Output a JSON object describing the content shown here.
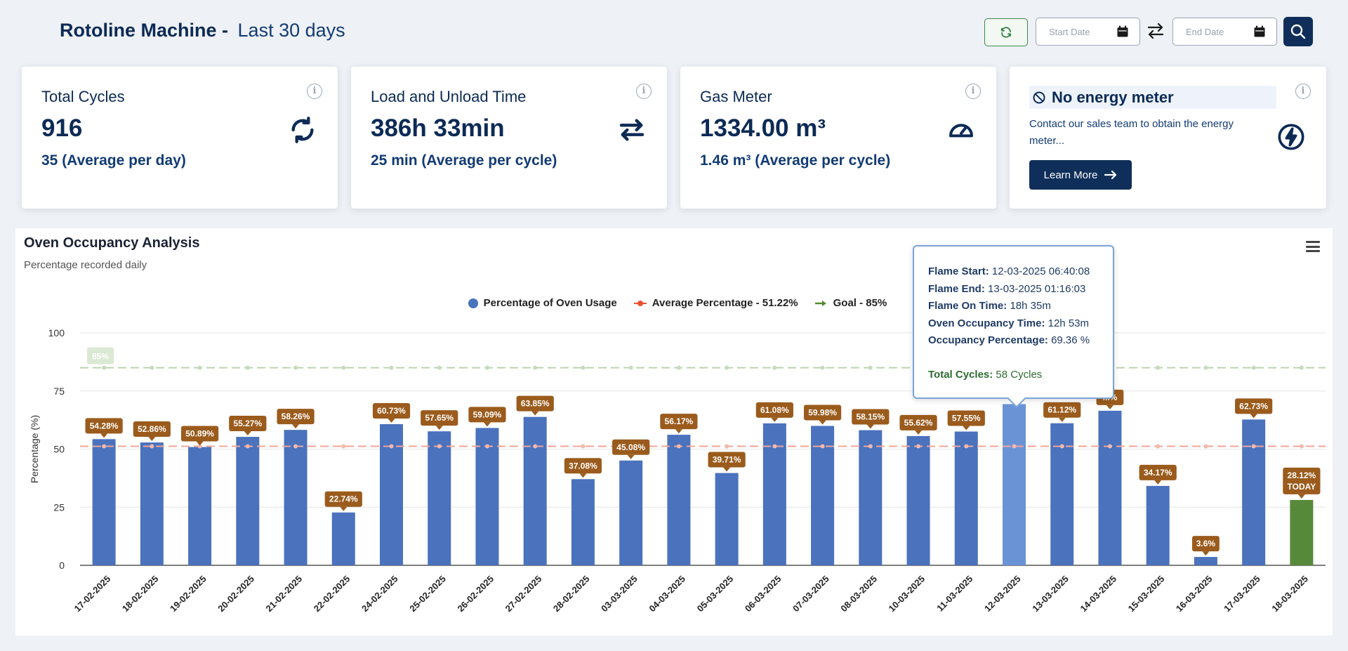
{
  "header": {
    "title_main": "Rotoline Machine -",
    "title_period": "Last 30 days",
    "start_date_placeholder": "Start Date",
    "end_date_placeholder": "End Date"
  },
  "cards": [
    {
      "title": "Total Cycles",
      "value": "916",
      "sub": "35 (Average per day)",
      "icon": "sync-icon"
    },
    {
      "title": "Load and Unload Time",
      "value": "386h 33min",
      "sub": "25 min (Average per cycle)",
      "icon": "swap-arrows-icon"
    },
    {
      "title": "Gas Meter",
      "value": "1334.00 m³",
      "sub": "1.46 m³ (Average per cycle)",
      "icon": "gauge-icon"
    }
  ],
  "energy_card": {
    "title": "No energy meter",
    "text": "Contact our sales team to obtain the energy meter...",
    "button": "Learn More",
    "icon": "lightning-icon"
  },
  "chart_panel": {
    "title": "Oven Occupancy Analysis",
    "subtitle": "Percentage recorded daily"
  },
  "legend": {
    "usage": "Percentage of Oven Usage",
    "average": "Average Percentage - 51.22%",
    "goal": "Goal - 85%"
  },
  "tooltip": {
    "flame_start_label": "Flame Start:",
    "flame_start": "12-03-2025 06:40:08",
    "flame_end_label": "Flame End:",
    "flame_end": "13-03-2025 01:16:03",
    "flame_on_label": "Flame On Time:",
    "flame_on": "18h 35m",
    "occupancy_time_label": "Oven Occupancy Time:",
    "occupancy_time": "12h 53m",
    "occupancy_pct_label": "Occupancy Percentage:",
    "occupancy_pct": "69.36 %",
    "total_cycles_label": "Total Cycles:",
    "total_cycles": "58 Cycles"
  },
  "colors": {
    "bar": "#4a72bd",
    "bar_hover": "#6a93d6",
    "bar_today": "#57893a",
    "label_bg": "#9a5b1c",
    "average_line": "#f0a59a",
    "goal_line": "#bcd2b0",
    "navy": "#0f2f5a"
  },
  "chart_data": {
    "type": "bar",
    "ylabel": "Percentage (%)",
    "ylim": [
      0,
      100
    ],
    "yticks": [
      0,
      25,
      50,
      75,
      100
    ],
    "categories": [
      "17-02-2025",
      "18-02-2025",
      "19-02-2025",
      "20-02-2025",
      "21-02-2025",
      "22-02-2025",
      "24-02-2025",
      "25-02-2025",
      "26-02-2025",
      "27-02-2025",
      "28-02-2025",
      "03-03-2025",
      "04-03-2025",
      "05-03-2025",
      "06-03-2025",
      "07-03-2025",
      "08-03-2025",
      "10-03-2025",
      "11-03-2025",
      "12-03-2025",
      "13-03-2025",
      "14-03-2025",
      "15-03-2025",
      "16-03-2025",
      "17-03-2025",
      "18-03-2025"
    ],
    "values": [
      54.28,
      52.86,
      50.89,
      55.27,
      58.26,
      22.74,
      60.73,
      57.65,
      59.09,
      63.85,
      37.08,
      45.08,
      56.17,
      39.71,
      61.08,
      59.98,
      58.15,
      55.62,
      57.55,
      69.36,
      61.12,
      66.5,
      34.17,
      3.6,
      62.73,
      28.12
    ],
    "data_labels": [
      "54.28%",
      "52.86%",
      "50.89%",
      "55.27%",
      "58.26%",
      "22.74%",
      "60.73%",
      "57.65%",
      "59.09%",
      "63.85%",
      "37.08%",
      "45.08%",
      "56.17%",
      "39.71%",
      "61.08%",
      "59.98%",
      "58.15%",
      "55.62%",
      "57.55%",
      "",
      "61.12%",
      "",
      "34.17%",
      "3.6%",
      "62.73%",
      "28.12%"
    ],
    "partial_label": "...%",
    "today_label": "TODAY",
    "average": 51.22,
    "goal": 85,
    "goal_label": "85%",
    "hovered_index": 19,
    "today_index": 25,
    "grid": true
  }
}
